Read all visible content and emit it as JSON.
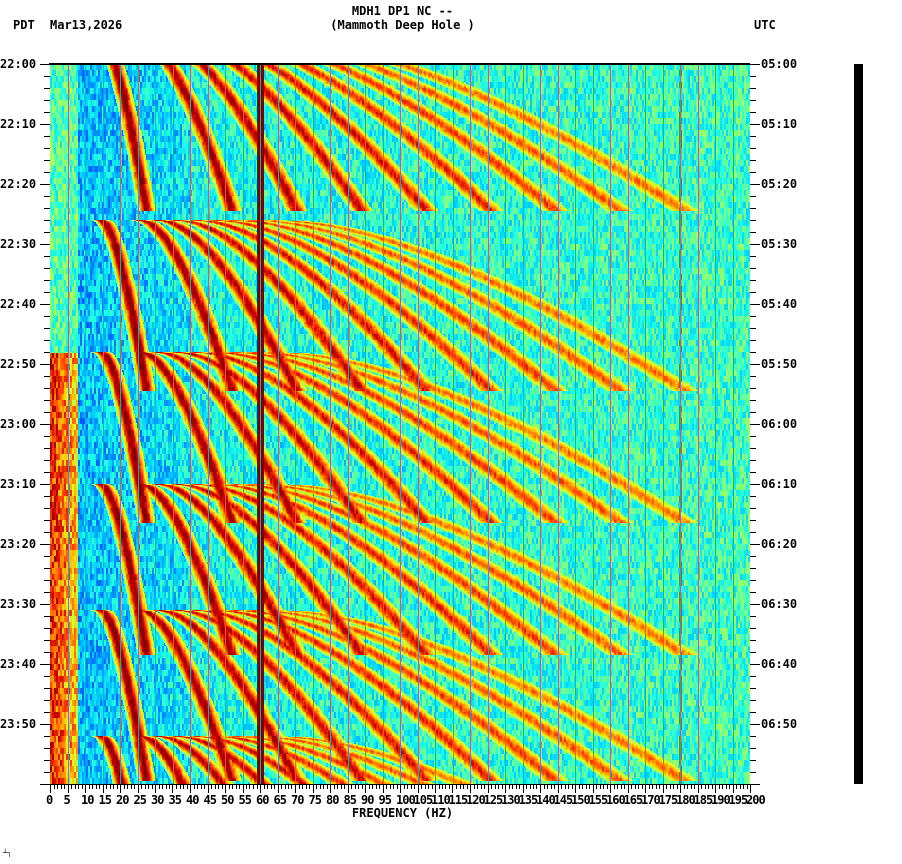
{
  "header": {
    "station_line": "MDH1 DP1 NC --",
    "location_line": "(Mammoth Deep Hole )",
    "left_timezone": "PDT",
    "date": "Mar13,2026",
    "right_timezone": "UTC"
  },
  "footer": {
    "corner_mark": "┴┐"
  },
  "chart_data": {
    "type": "heatmap",
    "title": "MDH1 DP1 NC -- (Mammoth Deep Hole )",
    "subtitle": "PDT Mar13,2026",
    "xlabel": "FREQUENCY (HZ)",
    "ylabel_left": "PDT",
    "ylabel_right": "UTC",
    "xlim": [
      0,
      200
    ],
    "x_ticks": [
      0,
      5,
      10,
      15,
      20,
      25,
      30,
      35,
      40,
      45,
      50,
      55,
      60,
      65,
      70,
      75,
      80,
      85,
      90,
      95,
      100,
      105,
      110,
      115,
      120,
      125,
      130,
      135,
      140,
      145,
      150,
      155,
      160,
      165,
      170,
      175,
      180,
      185,
      190,
      195,
      200
    ],
    "y_ticks_left": [
      "22:00",
      "22:10",
      "22:20",
      "22:30",
      "22:40",
      "22:50",
      "23:00",
      "23:10",
      "23:20",
      "23:30",
      "23:40",
      "23:50"
    ],
    "y_ticks_right": [
      "05:00",
      "05:10",
      "05:20",
      "05:30",
      "05:40",
      "05:50",
      "06:00",
      "06:10",
      "06:20",
      "06:30",
      "06:40",
      "06:50"
    ],
    "time_range_minutes": 120,
    "grid": "vertical lines every 5 Hz",
    "colormap": [
      "#00007f",
      "#0000ff",
      "#0060ff",
      "#00c8ff",
      "#20ffe0",
      "#80ff80",
      "#e0ff20",
      "#ffb000",
      "#ff4000",
      "#c00000",
      "#800000"
    ],
    "features": {
      "persistent_line_hz": 60,
      "weak_line_hz": 180,
      "low_freq_high_energy_band_hz": [
        0,
        8
      ],
      "low_freq_high_energy_start_minute": 48,
      "sweep_cycle_minutes": 21,
      "sweep_cycle_start_minutes": [
        -4,
        26,
        48,
        70,
        91,
        112
      ],
      "harmonic_sweeps": "Repeating upward frequency sweeps (curved harmonic tracks) from ~20 Hz to ~130 Hz, restarting roughly every 21 minutes"
    }
  }
}
